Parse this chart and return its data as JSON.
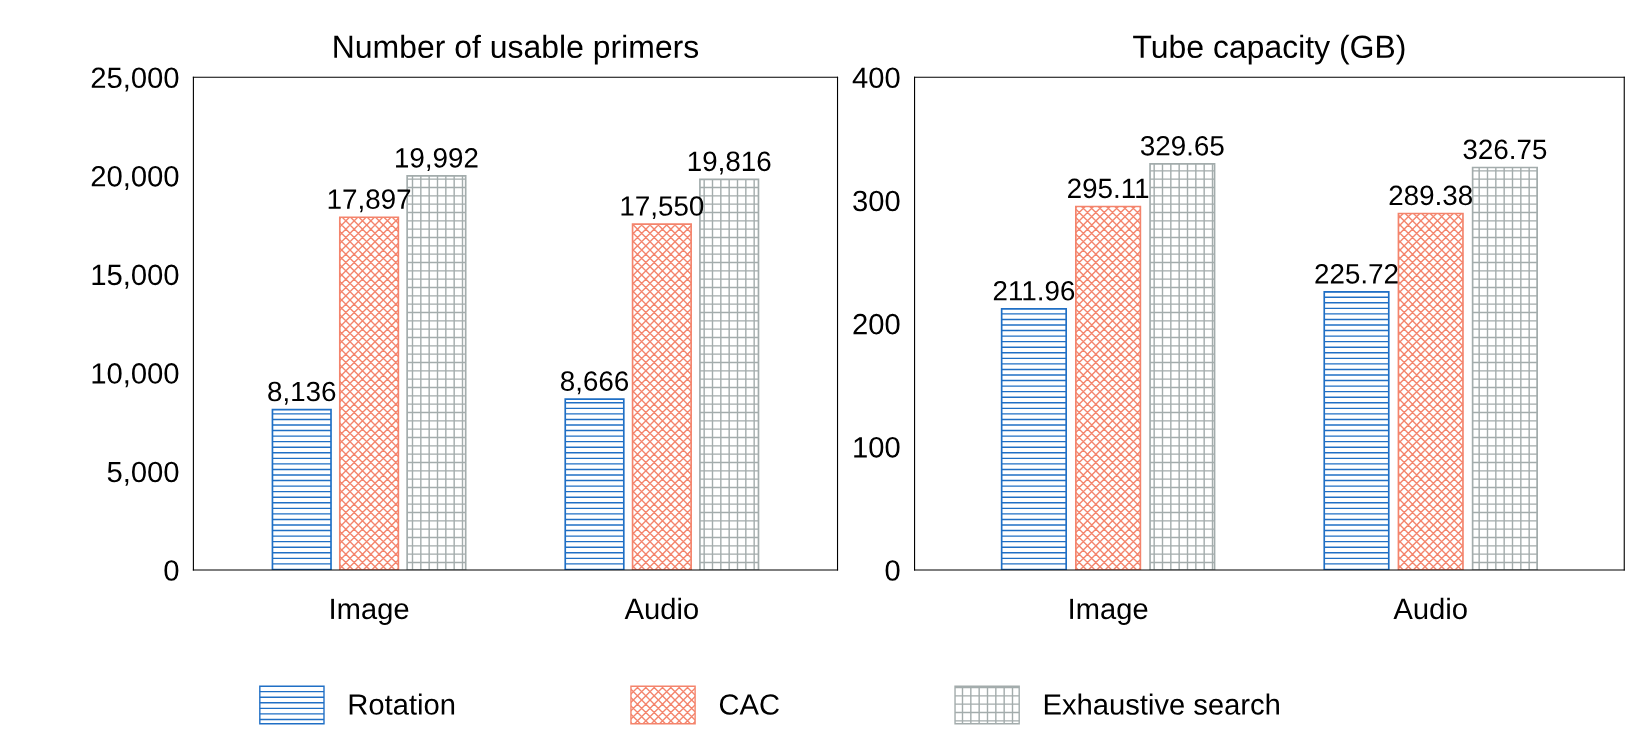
{
  "chart_data": [
    {
      "type": "bar",
      "title": "Number of usable primers",
      "categories": [
        "Image",
        "Audio"
      ],
      "series": [
        {
          "name": "Rotation",
          "color": "#1f6fc5",
          "values": [
            8136,
            8666
          ],
          "value_labels": [
            "8,136",
            "8,666"
          ]
        },
        {
          "name": "CAC",
          "color": "#f4846c",
          "values": [
            17897,
            17550
          ],
          "value_labels": [
            "17,897",
            "17,550"
          ]
        },
        {
          "name": "Exhaustive search",
          "color": "#a3acac",
          "values": [
            19992,
            19816
          ],
          "value_labels": [
            "19,992",
            "19,816"
          ]
        }
      ],
      "ylim": [
        0,
        25000
      ],
      "yticks": [
        0,
        {
          "value": 5000,
          "label": "5,000"
        },
        {
          "value": 10000,
          "label": "10,000"
        },
        {
          "value": 15000,
          "label": "15,000"
        },
        {
          "value": 20000,
          "label": "20,000"
        },
        {
          "value": 25000,
          "label": "25,000"
        }
      ],
      "legend": "bottom"
    },
    {
      "type": "bar",
      "title": "Tube capacity (GB)",
      "categories": [
        "Image",
        "Audio"
      ],
      "series": [
        {
          "color": "#1f6fc5",
          "values": [
            211.96,
            225.72
          ]
        },
        {
          "color": "#f4846c",
          "values": [
            295.11,
            289.38
          ]
        },
        {
          "color": "#a3acac",
          "values": [
            329.65,
            326.75
          ]
        }
      ],
      "ylim": [
        0,
        400
      ],
      "yticks": [
        0,
        100,
        200,
        300,
        400
      ],
      "data_labels": true
    }
  ]
}
